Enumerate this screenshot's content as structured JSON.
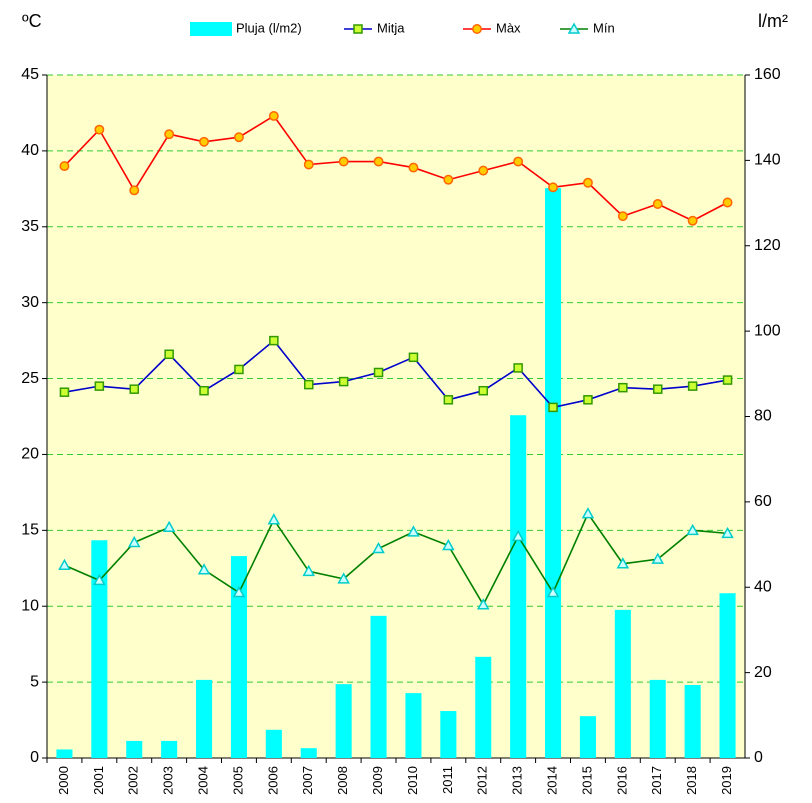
{
  "chart_data": {
    "type": "bar-line",
    "y_label": "ºC",
    "y2_label": "l/m²",
    "categories": [
      "2000",
      "2001",
      "2002",
      "2003",
      "2004",
      "2005",
      "2006",
      "2007",
      "2008",
      "2009",
      "2010",
      "2011",
      "2012",
      "2013",
      "2014",
      "2015",
      "2016",
      "2017",
      "2018",
      "2019"
    ],
    "series": [
      {
        "name": "Pluja (l/m2)",
        "type": "bar",
        "axis": "y2",
        "color": "#00ffff",
        "values": [
          2,
          51,
          4,
          4,
          18.3,
          47.3,
          6.6,
          2.3,
          17.3,
          33.3,
          15.2,
          11,
          23.7,
          80.3,
          133.5,
          9.8,
          34.7,
          18.3,
          17.1,
          38.6
        ]
      },
      {
        "name": "Mitja",
        "type": "line",
        "color": "#0000cc",
        "marker": "square",
        "marker_fill": "#ccff33",
        "marker_stroke": "#339900",
        "values": [
          24.1,
          24.5,
          24.3,
          26.6,
          24.2,
          25.6,
          27.5,
          24.6,
          24.8,
          25.4,
          26.4,
          23.6,
          24.2,
          25.7,
          23.1,
          23.6,
          24.4,
          24.3,
          24.5,
          24.9
        ]
      },
      {
        "name": "Màx",
        "type": "line",
        "color": "#ff0000",
        "marker": "circle",
        "marker_fill": "#ffcc00",
        "marker_stroke": "#ff6600",
        "values": [
          39.0,
          41.4,
          37.4,
          41.1,
          40.6,
          40.9,
          42.3,
          39.1,
          39.3,
          39.3,
          38.9,
          38.1,
          38.7,
          39.3,
          37.6,
          37.9,
          35.7,
          36.5,
          35.4,
          36.6
        ]
      },
      {
        "name": "Mín",
        "type": "line",
        "color": "#008000",
        "marker": "triangle",
        "marker_fill": "#ccffff",
        "marker_stroke": "#00cccc",
        "values": [
          12.7,
          11.7,
          14.2,
          15.2,
          12.4,
          10.9,
          15.7,
          12.3,
          11.8,
          13.8,
          14.9,
          14.0,
          10.1,
          14.6,
          10.9,
          16.1,
          12.8,
          13.1,
          15.0,
          14.8
        ]
      }
    ],
    "ylim": [
      0,
      45
    ],
    "yticks": [
      0,
      5,
      10,
      15,
      20,
      25,
      30,
      35,
      40,
      45
    ],
    "y2lim": [
      0,
      160
    ],
    "y2ticks": [
      0,
      20,
      40,
      60,
      80,
      100,
      120,
      140,
      160
    ],
    "grid": true,
    "plot_background": "#ffffcc",
    "legend": "top"
  }
}
